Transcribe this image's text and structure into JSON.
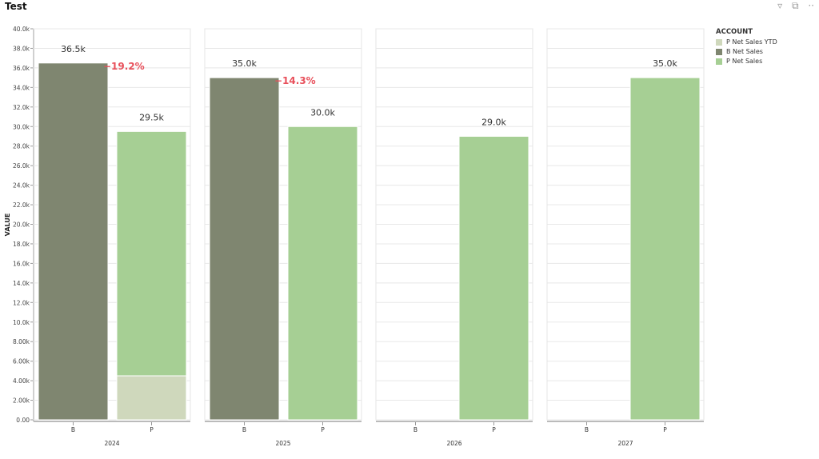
{
  "title": "Test",
  "header_icons": [
    "filter-icon",
    "focus-mode-icon",
    "more-options-icon"
  ],
  "legend": {
    "title": "ACCOUNT",
    "items": [
      {
        "label": "P Net Sales YTD",
        "color": "#cfd8bc"
      },
      {
        "label": "B Net Sales",
        "color": "#7f8670"
      },
      {
        "label": "P Net Sales",
        "color": "#a6cf94"
      }
    ]
  },
  "chart_data": {
    "type": "bar",
    "stacked": true,
    "ylabel": "VALUE",
    "ylim": [
      0,
      40000
    ],
    "yticks": [
      "0.00",
      "2.00k",
      "4.00k",
      "6.00k",
      "8.00k",
      "10.0k",
      "12.0k",
      "14.0k",
      "16.0k",
      "18.0k",
      "20.0k",
      "22.0k",
      "24.0k",
      "26.0k",
      "28.0k",
      "30.0k",
      "32.0k",
      "34.0k",
      "36.0k",
      "38.0k",
      "40.0k"
    ],
    "grid": true,
    "legend_position": "right",
    "panels": [
      {
        "year": "2024",
        "bars": [
          {
            "category": "B",
            "segments": [
              {
                "series": "B Net Sales",
                "value": 36500
              }
            ],
            "label": "36.5k"
          },
          {
            "category": "P",
            "segments": [
              {
                "series": "P Net Sales YTD",
                "value": 4500
              },
              {
                "series": "P Net Sales",
                "value": 25000
              }
            ],
            "label": "29.5k"
          }
        ],
        "variance": "−19.2%"
      },
      {
        "year": "2025",
        "bars": [
          {
            "category": "B",
            "segments": [
              {
                "series": "B Net Sales",
                "value": 35000
              }
            ],
            "label": "35.0k"
          },
          {
            "category": "P",
            "segments": [
              {
                "series": "P Net Sales",
                "value": 30000
              }
            ],
            "label": "30.0k"
          }
        ],
        "variance": "−14.3%"
      },
      {
        "year": "2026",
        "bars": [
          {
            "category": "B",
            "segments": [],
            "label": ""
          },
          {
            "category": "P",
            "segments": [
              {
                "series": "P Net Sales",
                "value": 29000
              }
            ],
            "label": "29.0k"
          }
        ],
        "variance": ""
      },
      {
        "year": "2027",
        "bars": [
          {
            "category": "B",
            "segments": [],
            "label": ""
          },
          {
            "category": "P",
            "segments": [
              {
                "series": "P Net Sales",
                "value": 35000
              }
            ],
            "label": "35.0k"
          }
        ],
        "variance": ""
      }
    ],
    "variance_color": "#e8505b"
  }
}
